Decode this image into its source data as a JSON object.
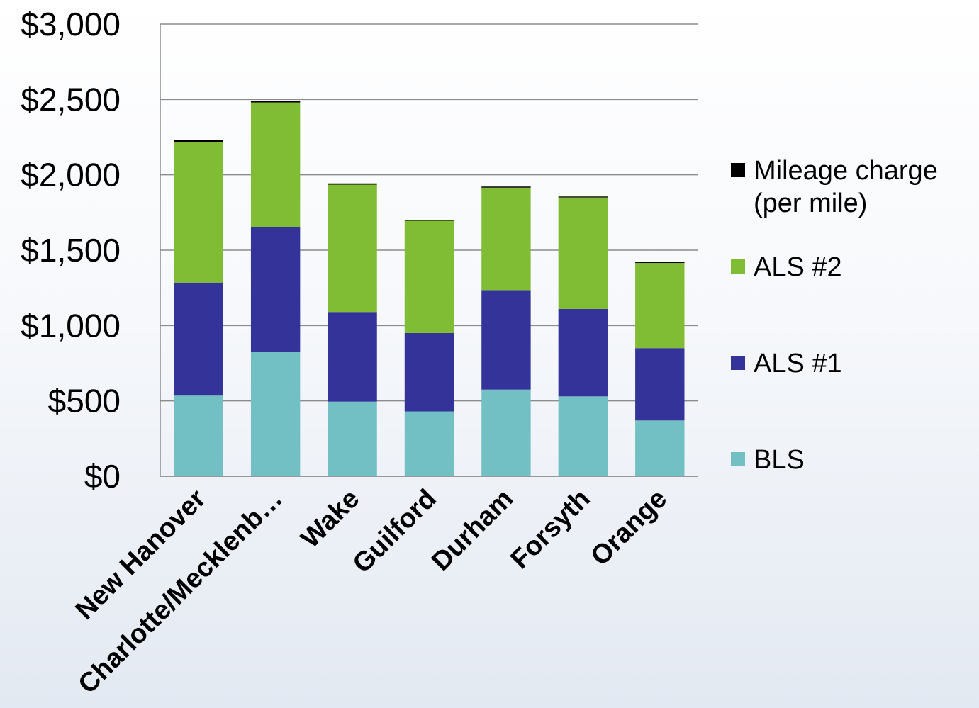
{
  "chart_data": {
    "type": "bar",
    "stacked": true,
    "title": "",
    "xlabel": "",
    "ylabel": "",
    "ylim": [
      0,
      3000
    ],
    "y_ticks": [
      0,
      500,
      1000,
      1500,
      2000,
      2500,
      3000
    ],
    "y_tick_labels": [
      "$0",
      "$500",
      "$1,000",
      "$1,500",
      "$2,000",
      "$2,500",
      "$3,000"
    ],
    "grid": true,
    "legend_position": "right",
    "categories": [
      "New Hanover",
      "Charlotte/Mecklenb…",
      "Wake",
      "Guilford",
      "Durham",
      "Forsyth",
      "Orange"
    ],
    "series": [
      {
        "name": "BLS",
        "color": "#72BFC4",
        "values": [
          535,
          825,
          495,
          430,
          575,
          530,
          370
        ]
      },
      {
        "name": "ALS #1",
        "color": "#333399",
        "values": [
          750,
          830,
          595,
          520,
          660,
          580,
          480
        ]
      },
      {
        "name": "ALS #2",
        "color": "#80BD35",
        "values": [
          930,
          825,
          845,
          745,
          680,
          740,
          565
        ]
      },
      {
        "name": "Mileage charge (per mile)",
        "color": "#000000",
        "values": [
          15,
          12,
          8,
          7,
          7,
          6,
          6
        ]
      }
    ],
    "legend": {
      "order": [
        "Mileage charge (per mile)",
        "ALS #2",
        "ALS #1",
        "BLS"
      ],
      "lines": {
        "Mileage charge (per mile)": [
          "Mileage charge",
          "(per mile)"
        ],
        "ALS #2": [
          "ALS #2"
        ],
        "ALS #1": [
          "ALS #1"
        ],
        "BLS": [
          "BLS"
        ]
      }
    }
  }
}
